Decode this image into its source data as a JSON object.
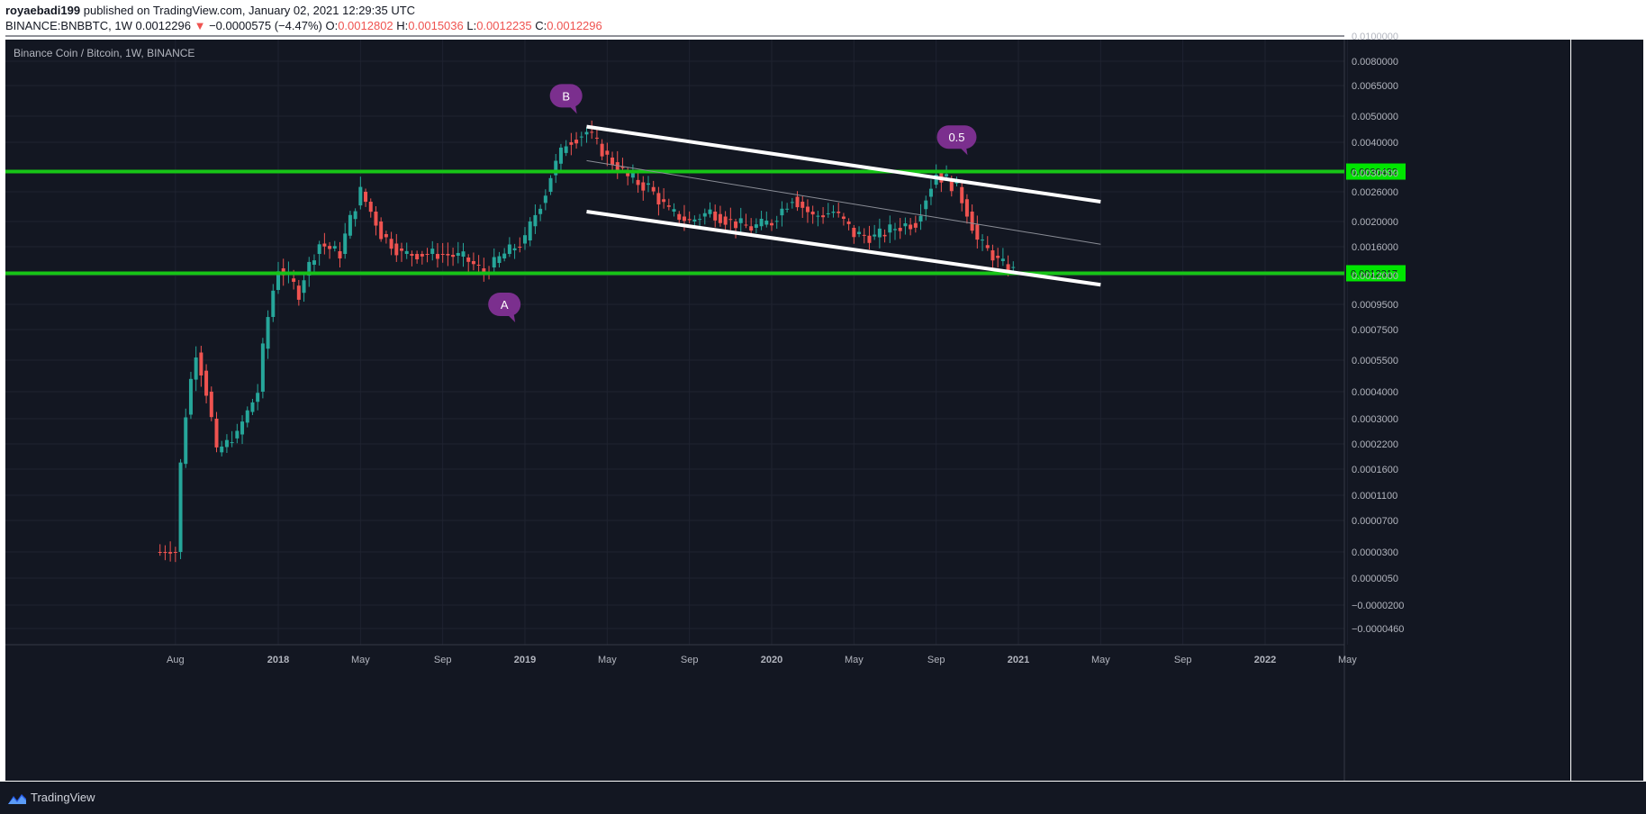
{
  "header": {
    "author": "royaebadi199",
    "published_text": "published on TradingView.com, January 02, 2021 12:29:35 UTC",
    "symbol": "BINANCE:BNBBTC, 1W",
    "last": "0.0012296",
    "change_arrow": "▼",
    "change": "−0.0000575 (−4.47%)",
    "o_label": "O:",
    "o_value": "0.0012802",
    "h_label": "H:",
    "h_value": "0.0015036",
    "l_label": "L:",
    "l_value": "0.0012235",
    "c_label": "C:",
    "c_value": "0.0012296"
  },
  "chart_title": "Binance Coin / Bitcoin, 1W, BINANCE",
  "footer": {
    "brand": "TradingView",
    "icon": "tradingview-logo-icon"
  },
  "colors": {
    "background": "#131722",
    "grid": "#1f2330",
    "up": "#26a69a",
    "down": "#ef5350",
    "level_line": "#17c417",
    "channel": "#ffffff",
    "bubble": "#7b2f8e",
    "axis_text": "#b2b5be"
  },
  "chart_data": {
    "type": "candlestick",
    "timeframe": "1W",
    "x_tick_labels": [
      "Aug",
      "2018",
      "May",
      "Sep",
      "2019",
      "May",
      "Sep",
      "2020",
      "May",
      "Sep",
      "2021",
      "May",
      "Sep",
      "2022",
      "May"
    ],
    "y_tick_labels": [
      "0.0100000",
      "0.0080000",
      "0.0065000",
      "0.0050000",
      "0.0040000",
      "0.0030000",
      "0.0026000",
      "0.0020000",
      "0.0016000",
      "0.0012000",
      "0.0009500",
      "0.0007500",
      "0.0005500",
      "0.0004000",
      "0.0003000",
      "0.0002200",
      "0.0001600",
      "0.0001100",
      "0.0000700",
      "0.0000300",
      "0.0000050",
      "−0.0000200",
      "−0.0000460"
    ],
    "horizontal_levels": [
      {
        "value": 0.0030432,
        "label": "0.0030432"
      },
      {
        "value": 0.0012317,
        "label": "0.0012317"
      }
    ],
    "annotations": [
      {
        "text": "B",
        "date": "2019-03",
        "price": 0.006
      },
      {
        "text": "A",
        "date": "2018-12",
        "price": 0.00095
      },
      {
        "text": "0.5",
        "date": "2020-10",
        "price": 0.0042
      }
    ],
    "channel_lines": [
      {
        "role": "upper",
        "from": {
          "date": "2019-04",
          "price": 0.0046
        },
        "to": {
          "date": "2021-05",
          "price": 0.0024
        }
      },
      {
        "role": "lower",
        "from": {
          "date": "2019-04",
          "price": 0.0022
        },
        "to": {
          "date": "2021-05",
          "price": 0.00112
        }
      },
      {
        "role": "middle",
        "from": {
          "date": "2019-04",
          "price": 0.0034
        },
        "to": {
          "date": "2021-05",
          "price": 0.00164
        }
      }
    ],
    "price_path": [
      {
        "date": "2017-07",
        "price": 3e-05
      },
      {
        "date": "2017-08",
        "price": 3e-05
      },
      {
        "date": "2017-09",
        "price": 0.0006
      },
      {
        "date": "2017-10",
        "price": 0.0002
      },
      {
        "date": "2017-11",
        "price": 0.00025
      },
      {
        "date": "2017-12",
        "price": 0.0004
      },
      {
        "date": "2018-01",
        "price": 0.0013
      },
      {
        "date": "2018-02",
        "price": 0.00105
      },
      {
        "date": "2018-03",
        "price": 0.00165
      },
      {
        "date": "2018-04",
        "price": 0.0015
      },
      {
        "date": "2018-05",
        "price": 0.0026
      },
      {
        "date": "2018-06",
        "price": 0.0018
      },
      {
        "date": "2018-07",
        "price": 0.0015
      },
      {
        "date": "2018-08",
        "price": 0.0015
      },
      {
        "date": "2018-09",
        "price": 0.0015
      },
      {
        "date": "2018-10",
        "price": 0.00145
      },
      {
        "date": "2018-11",
        "price": 0.00125
      },
      {
        "date": "2018-12",
        "price": 0.0015
      },
      {
        "date": "2019-01",
        "price": 0.0017
      },
      {
        "date": "2019-02",
        "price": 0.0026
      },
      {
        "date": "2019-03",
        "price": 0.004
      },
      {
        "date": "2019-04",
        "price": 0.0044
      },
      {
        "date": "2019-05",
        "price": 0.0035
      },
      {
        "date": "2019-06",
        "price": 0.0029
      },
      {
        "date": "2019-07",
        "price": 0.0027
      },
      {
        "date": "2019-08",
        "price": 0.0022
      },
      {
        "date": "2019-09",
        "price": 0.002
      },
      {
        "date": "2019-10",
        "price": 0.0022
      },
      {
        "date": "2019-11",
        "price": 0.002
      },
      {
        "date": "2019-12",
        "price": 0.0019
      },
      {
        "date": "2020-01",
        "price": 0.002
      },
      {
        "date": "2020-02",
        "price": 0.0025
      },
      {
        "date": "2020-03",
        "price": 0.0021
      },
      {
        "date": "2020-04",
        "price": 0.0022
      },
      {
        "date": "2020-05",
        "price": 0.0018
      },
      {
        "date": "2020-06",
        "price": 0.00175
      },
      {
        "date": "2020-07",
        "price": 0.0019
      },
      {
        "date": "2020-08",
        "price": 0.002
      },
      {
        "date": "2020-09",
        "price": 0.003
      },
      {
        "date": "2020-10",
        "price": 0.0027
      },
      {
        "date": "2020-11",
        "price": 0.0017
      },
      {
        "date": "2020-12",
        "price": 0.0014
      },
      {
        "date": "2021-01",
        "price": 0.00123
      }
    ]
  }
}
